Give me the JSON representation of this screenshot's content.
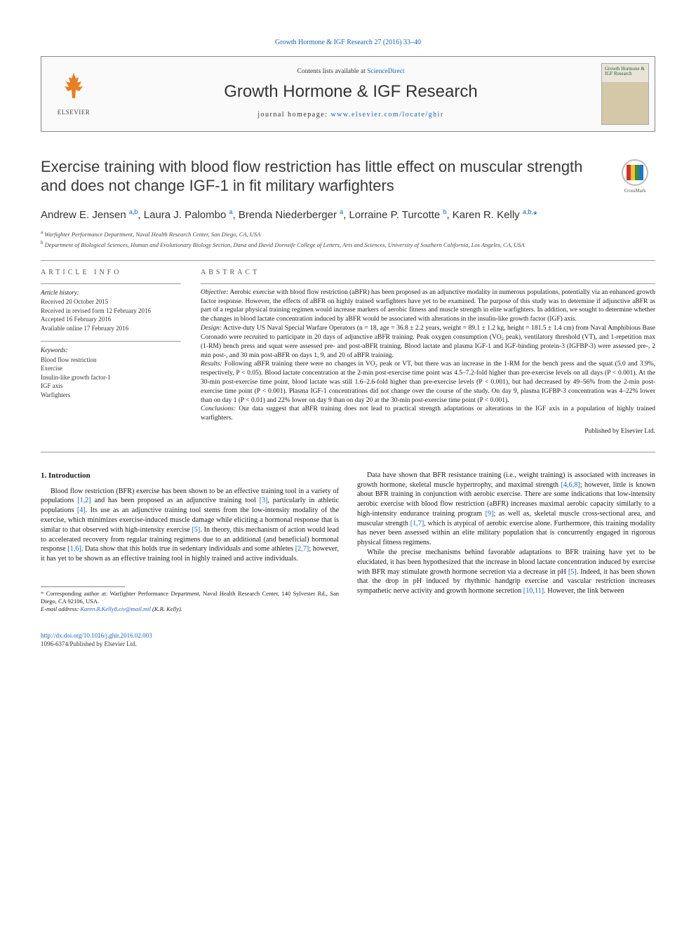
{
  "top_link": "Growth Hormone & IGF Research 27 (2016) 33–40",
  "header": {
    "contents_prefix": "Contents lists available at ",
    "contents_link": "ScienceDirect",
    "journal_name": "Growth Hormone & IGF Research",
    "homepage_prefix": "journal homepage: ",
    "homepage_link": "www.elsevier.com/locate/ghir",
    "elsevier_label": "ELSEVIER",
    "cover_text": "Growth Hormone & IGF Research"
  },
  "crossmark_label": "CrossMark",
  "crossmark_colors": [
    "#d32f2f",
    "#fbc02d",
    "#388e3c",
    "#1976d2"
  ],
  "title": "Exercise training with blood flow restriction has little effect on muscular strength and does not change IGF-1 in fit military warfighters",
  "authors_html": "Andrew E. Jensen <sup>a,b</sup>, Laura J. Palombo <sup>a</sup>, Brenda Niederberger <sup>a</sup>, Lorraine P. Turcotte <sup>b</sup>, Karen R. Kelly <sup>a,b,</sup><span class='star'>*</span>",
  "affiliations": [
    {
      "sup": "a",
      "text": "Warfighter Performance Department, Naval Health Research Center, San Diego, CA, USA"
    },
    {
      "sup": "b",
      "text": "Department of Biological Sciences, Human and Evolutionary Biology Section, Dana and David Dornsife College of Letters, Arts and Sciences, University of Southern California, Los Angeles, CA, USA"
    }
  ],
  "article_info": {
    "label": "ARTICLE INFO",
    "history_heading": "Article history:",
    "history": [
      "Received 20 October 2015",
      "Received in revised form 12 February 2016",
      "Accepted 16 February 2016",
      "Available online 17 February 2016"
    ],
    "keywords_heading": "Keywords:",
    "keywords": [
      "Blood flow restriction",
      "Exercise",
      "Insulin-like growth factor-1",
      "IGF axis",
      "Warfighters"
    ]
  },
  "abstract": {
    "label": "ABSTRACT",
    "objective_label": "Objective:",
    "objective": " Aerobic exercise with blood flow restriction (aBFR) has been proposed as an adjunctive modality in numerous populations, potentially via an enhanced growth factor response. However, the effects of aBFR on highly trained warfighters have yet to be examined. The purpose of this study was to determine if adjunctive aBFR as part of a regular physical training regimen would increase markers of aerobic fitness and muscle strength in elite warfighters. In addition, we sought to determine whether the changes in blood lactate concentration induced by aBFR would be associated with alterations in the insulin-like growth factor (IGF) axis.",
    "design_label": "Design:",
    "design": " Active-duty US Naval Special Warfare Operators (n = 18, age = 36.8 ± 2.2 years, weight = 89.1 ± 1.2 kg, height = 181.5 ± 1.4 cm) from Naval Amphibious Base Coronado were recruited to participate in 20 days of adjunctive aBFR training. Peak oxygen consumption (VO₂ peak), ventilatory threshold (VT), and 1-repetition max (1-RM) bench press and squat were assessed pre- and post-aBFR training. Blood lactate and plasma IGF-1 and IGF-binding protein-3 (IGFBP-3) were assessed pre-, 2 min post-, and 30 min post-aBFR on days 1, 9, and 20 of aBFR training.",
    "results_label": "Results:",
    "results": " Following aBFR training there were no changes in VO₂ peak or VT, but there was an increase in the 1-RM for the bench press and the squat (5.0 and 3.9%, respectively, P < 0.05). Blood lactate concentration at the 2-min post-exercise time point was 4.5–7.2-fold higher than pre-exercise levels on all days (P < 0.001). At the 30-min post-exercise time point, blood lactate was still 1.6–2.6-fold higher than pre-exercise levels (P < 0.001), but had decreased by 49–56% from the 2-min post-exercise time point (P < 0.001). Plasma IGF-1 concentrations did not change over the course of the study. On day 9, plasma IGFBP-3 concentration was 4–22% lower than on day 1 (P < 0.01) and 22% lower on day 9 than on day 20 at the 30-min post-exercise time point (P < 0.001).",
    "conclusions_label": "Conclusions:",
    "conclusions": " Our data suggest that aBFR training does not lead to practical strength adaptations or alterations in the IGF axis in a population of highly trained warfighters.",
    "publisher": "Published by Elsevier Ltd."
  },
  "intro": {
    "heading": "1. Introduction",
    "p1_pre": "Blood flow restriction (BFR) exercise has been shown to be an effective training tool in a variety of populations ",
    "r1": "[1,2]",
    "p1_a": " and has been proposed as an adjunctive training tool ",
    "r2": "[3]",
    "p1_b": ", particularly in athletic populations ",
    "r3": "[4]",
    "p1_c": ". Its use as an adjunctive training tool stems from the low-intensity modality of the exercise, which minimizes exercise-induced muscle damage while eliciting a hormonal response that is similar to that observed with high-intensity exercise ",
    "r4": "[5]",
    "p1_d": ". In theory, this mechanism of action would lead to accelerated recovery from regular training regimens due to an additional (and beneficial) hormonal response ",
    "r5": "[1,6]",
    "p1_e": ". Data show that this holds true in sedentary individuals and some athletes ",
    "r6": "[2,7]",
    "p1_f": "; however, it has yet to be shown as an effective training tool in highly trained and active individuals.",
    "p2_a": "Data have shown that BFR resistance training (i.e., weight training) is associated with increases in growth hormone, skeletal muscle hypertrophy, and maximal strength ",
    "r7": "[4,6,8]",
    "p2_b": "; however, little is known about BFR training in conjunction with aerobic exercise. There are some indications that low-intensity aerobic exercise with blood flow restriction (aBFR) increases maximal aerobic capacity similarly to a high-intensity endurance training program ",
    "r8": "[9]",
    "p2_c": "; as well as, skeletal muscle cross-sectional area, and muscular strength ",
    "r9": "[1,7]",
    "p2_d": ", which is atypical of aerobic exercise alone. Furthermore, this training modality has never been assessed within an elite military population that is concurrently engaged in rigorous physical fitness regimens.",
    "p3_a": "While the precise mechanisms behind favorable adaptations to BFR training have yet to be elucidated, it has been hypothesized that the increase in blood lactate concentration induced by exercise with BFR may stimulate growth hormone secretion via a decrease in pH ",
    "r10": "[5]",
    "p3_b": ". Indeed, it has been shown that the drop in pH induced by rhythmic handgrip exercise and vascular restriction increases sympathetic nerve activity and growth hormone secretion ",
    "r11": "[10,11]",
    "p3_c": ". However, the link between"
  },
  "footnote": {
    "corr": "Corresponding author at: Warfighter Performance Department, Naval Health Research Center, 140 Sylvester Rd., San Diego, CA 92106, USA.",
    "email_label": "E-mail address: ",
    "email": "Karen.R.Kelly8.civ@mail.mil",
    "email_person": " (K.R. Kelly)."
  },
  "bottom": {
    "doi": "http://dx.doi.org/10.1016/j.ghir.2016.02.003",
    "copyright": "1096-6374/Published by Elsevier Ltd."
  },
  "colors": {
    "link": "#1565c0",
    "text": "#1a1a1a",
    "rule": "#999999",
    "elsevier_orange": "#e67e22"
  }
}
